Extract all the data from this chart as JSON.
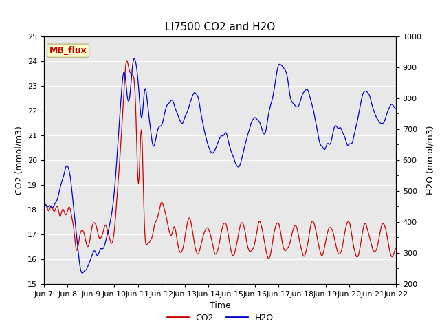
{
  "title": "LI7500 CO2 and H2O",
  "xlabel": "Time",
  "ylabel_left": "CO2 (mmol/m3)",
  "ylabel_right": "H2O (mmol/m3)",
  "co2_color": "#cc0000",
  "h2o_color": "#0000cc",
  "ylim_left": [
    15.0,
    25.0
  ],
  "ylim_right": [
    200,
    1000
  ],
  "yticks_left": [
    15.0,
    16.0,
    17.0,
    18.0,
    19.0,
    20.0,
    21.0,
    22.0,
    23.0,
    24.0,
    25.0
  ],
  "yticks_right": [
    200,
    300,
    400,
    500,
    600,
    700,
    800,
    900,
    1000
  ],
  "bg_color": "#e8e8e8",
  "fig_color": "#ffffff",
  "annotation_text": "MB_flux",
  "annotation_color": "#cc0000",
  "annotation_bg": "#ffffcc",
  "annotation_edge": "#bbbb88",
  "legend_labels": [
    "CO2",
    "H2O"
  ],
  "title_fontsize": 11,
  "axis_fontsize": 9,
  "tick_fontsize": 8,
  "legend_fontsize": 9,
  "xtick_labels": [
    "Jun 7",
    "Jun 8",
    "Jun 9",
    "Jun 10",
    "Jun 11",
    "Jun 12",
    "Jun 13",
    "Jun 14",
    "Jun 15",
    "Jun 16",
    "Jun 17",
    "Jun 18",
    "Jun 19",
    "Jun 20",
    "Jun 21",
    "Jun 22"
  ]
}
